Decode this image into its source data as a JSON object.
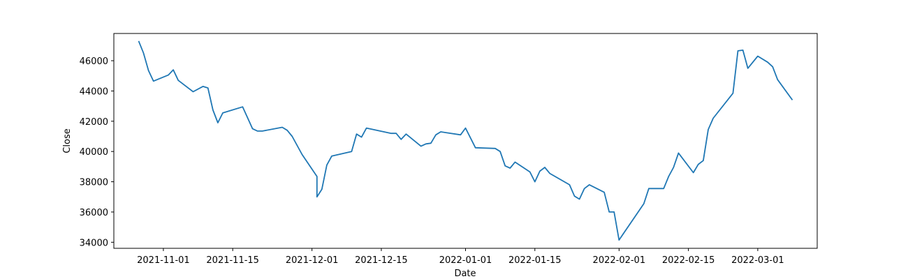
{
  "chart_data": {
    "type": "line",
    "title": "",
    "xlabel": "Date",
    "ylabel": "Close",
    "xlim": [
      "2021-10-22",
      "2022-03-13"
    ],
    "ylim": [
      33600,
      47800
    ],
    "grid": false,
    "x_ticks": [
      "2021-11-01",
      "2021-11-15",
      "2021-12-01",
      "2021-12-15",
      "2022-01-01",
      "2022-01-15",
      "2022-02-01",
      "2022-02-15",
      "2022-03-01"
    ],
    "y_ticks": [
      34000,
      36000,
      38000,
      40000,
      42000,
      44000,
      46000
    ],
    "y_tick_labels": [
      "34000",
      "36000",
      "38000",
      "40000",
      "42000",
      "44000",
      "46000"
    ],
    "line_color": "#1f77b4",
    "series": [
      {
        "x": [
          "2021-10-27",
          "2021-10-28",
          "2021-10-29",
          "2021-10-30",
          "2021-11-02",
          "2021-11-03",
          "2021-11-04",
          "2021-11-07",
          "2021-11-09",
          "2021-11-10",
          "2021-11-11",
          "2021-11-12",
          "2021-11-13",
          "2021-11-17",
          "2021-11-19",
          "2021-11-20",
          "2021-11-21",
          "2021-11-25",
          "2021-11-26",
          "2021-11-27",
          "2021-11-29",
          "2021-12-02",
          "2021-12-02",
          "2021-12-03",
          "2021-12-04",
          "2021-12-05",
          "2021-12-09",
          "2021-12-10",
          "2021-12-11",
          "2021-12-12",
          "2021-12-17",
          "2021-12-18",
          "2021-12-19",
          "2021-12-20",
          "2021-12-23",
          "2021-12-24",
          "2021-12-25",
          "2021-12-26",
          "2021-12-27",
          "2021-12-31",
          "2022-01-01",
          "2022-01-03",
          "2022-01-07",
          "2022-01-08",
          "2022-01-09",
          "2022-01-10",
          "2022-01-11",
          "2022-01-14",
          "2022-01-15",
          "2022-01-16",
          "2022-01-17",
          "2022-01-18",
          "2022-01-22",
          "2022-01-23",
          "2022-01-24",
          "2022-01-25",
          "2022-01-26",
          "2022-01-29",
          "2022-01-30",
          "2022-01-31",
          "2022-01-31",
          "2022-02-01",
          "2022-02-06",
          "2022-02-07",
          "2022-02-10",
          "2022-02-11",
          "2022-02-12",
          "2022-02-13",
          "2022-02-16",
          "2022-02-17",
          "2022-02-18",
          "2022-02-19",
          "2022-02-20",
          "2022-02-24",
          "2022-02-25",
          "2022-02-26",
          "2022-02-27",
          "2022-03-01",
          "2022-03-03",
          "2022-03-04",
          "2022-03-05",
          "2022-03-08"
        ],
        "y": [
          47300,
          46500,
          45350,
          44650,
          45050,
          45400,
          44700,
          43950,
          44300,
          44200,
          42750,
          41900,
          42550,
          42950,
          41500,
          41350,
          41350,
          41600,
          41400,
          41000,
          39800,
          38350,
          37000,
          37500,
          39100,
          39700,
          40000,
          41150,
          40950,
          41550,
          41200,
          41200,
          40800,
          41150,
          40350,
          40500,
          40550,
          41100,
          41300,
          41100,
          41550,
          40250,
          40200,
          40000,
          39050,
          38900,
          39300,
          38650,
          38000,
          38700,
          38950,
          38550,
          37800,
          37050,
          36850,
          37550,
          37800,
          37300,
          36000,
          36000,
          36000,
          34150,
          36550,
          37550,
          37550,
          38350,
          38950,
          39900,
          38600,
          39150,
          39400,
          41450,
          42200,
          43850,
          46650,
          46700,
          45500,
          46300,
          45900,
          45600,
          44750,
          43400
        ]
      }
    ]
  }
}
